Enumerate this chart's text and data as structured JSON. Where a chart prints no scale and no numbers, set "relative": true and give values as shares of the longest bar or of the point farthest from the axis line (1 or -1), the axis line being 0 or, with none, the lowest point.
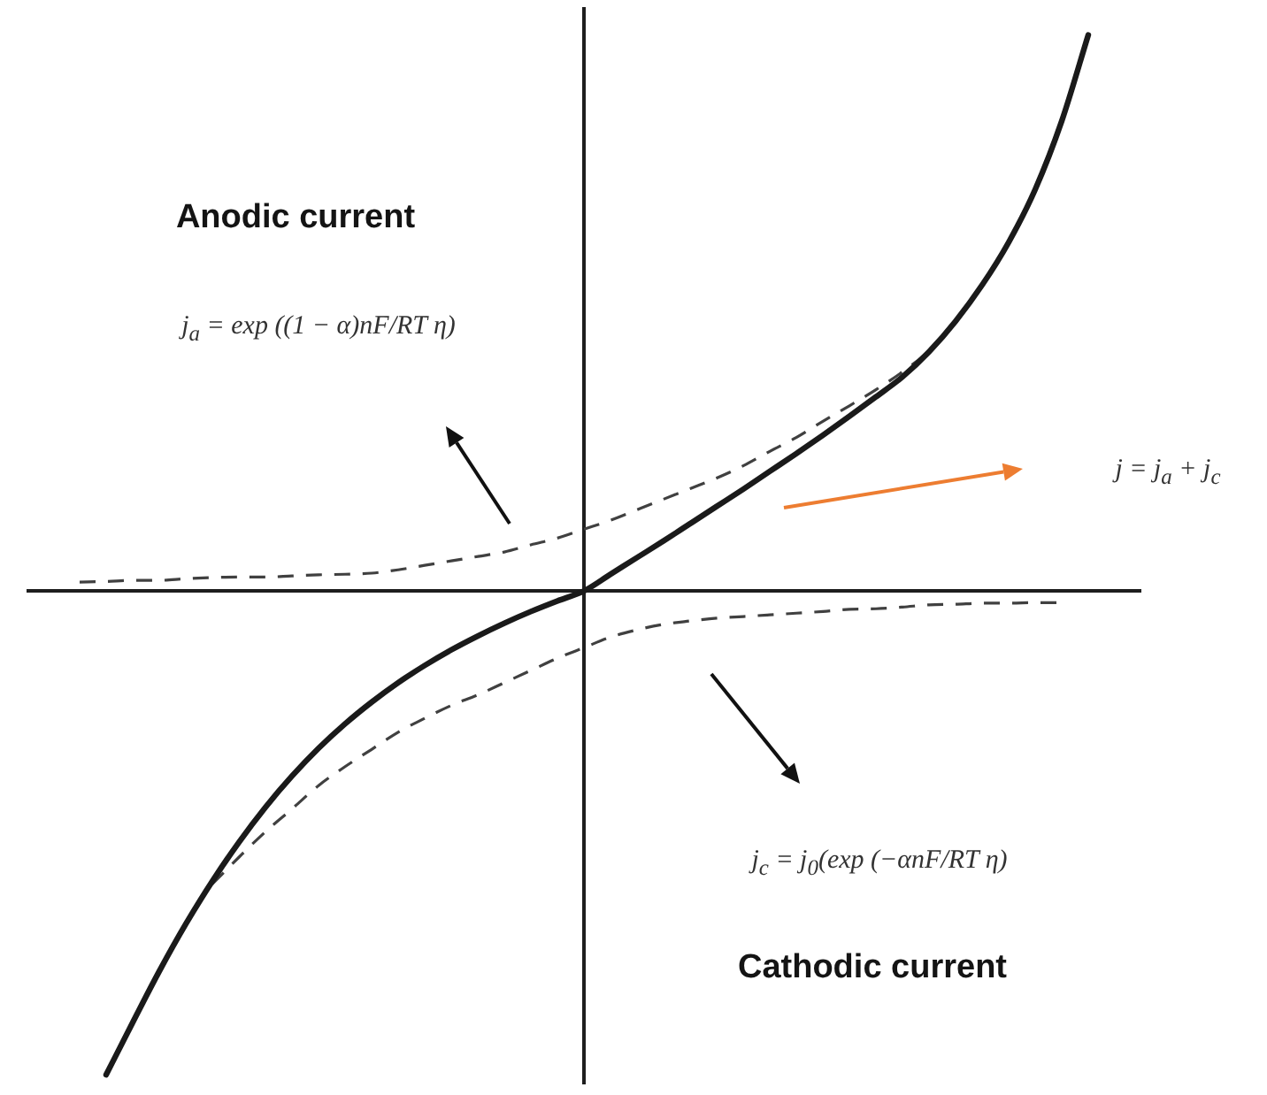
{
  "chart_data": {
    "type": "line",
    "relative": true,
    "marker": "none",
    "categories": [
      null,
      null,
      null,
      null,
      null,
      null,
      null,
      null,
      null,
      null,
      null,
      null,
      null,
      null,
      null,
      null,
      null,
      null,
      null,
      null,
      null,
      null,
      null,
      null,
      null,
      null,
      null,
      null,
      null,
      null,
      null,
      null,
      null,
      null,
      null,
      null,
      null,
      null,
      null,
      null,
      null,
      null,
      null
    ],
    "series": [
      {
        "color": "#1a1a1a",
        "line_style": "solid",
        "values": [
          null,
          null,
          null,
          -0.87,
          -0.776,
          -0.684,
          -0.599,
          -0.522,
          -0.452,
          -0.389,
          -0.333,
          -0.283,
          -0.239,
          -0.2,
          -0.165,
          -0.134,
          -0.106,
          -0.081,
          -0.058,
          -0.037,
          -0.018,
          0,
          0.03,
          0.06,
          0.09,
          0.121,
          0.152,
          0.183,
          0.215,
          0.247,
          0.28,
          0.314,
          0.349,
          0.385,
          0.43,
          0.485,
          0.55,
          0.627,
          0.722,
          0.845,
          1.0,
          null,
          null
        ]
      },
      {
        "color": "#404040",
        "line_style": "dashed",
        "values": [
          null,
          null,
          0.016,
          0.017,
          0.019,
          0.019,
          0.022,
          0.024,
          0.025,
          0.025,
          0.027,
          0.029,
          0.03,
          0.032,
          0.038,
          0.046,
          0.054,
          0.062,
          0.07,
          0.083,
          0.095,
          0.111,
          0.127,
          0.146,
          0.165,
          0.184,
          0.203,
          0.225,
          0.251,
          0.276,
          0.305,
          0.333,
          0.362,
          0.394,
          0.432,
          0.486,
          null,
          null,
          null,
          null,
          null,
          null,
          null
        ]
      },
      {
        "color": "#404040",
        "line_style": "dashed",
        "values": [
          null,
          null,
          null,
          null,
          null,
          null,
          null,
          -0.527,
          -0.479,
          -0.433,
          -0.392,
          -0.35,
          -0.316,
          -0.285,
          -0.254,
          -0.229,
          -0.206,
          -0.187,
          -0.165,
          -0.143,
          -0.121,
          -0.102,
          -0.083,
          -0.07,
          -0.06,
          -0.054,
          -0.049,
          -0.046,
          -0.043,
          -0.04,
          -0.037,
          -0.033,
          -0.032,
          -0.029,
          -0.025,
          -0.024,
          -0.022,
          -0.022,
          -0.021,
          -0.021,
          null,
          null,
          null
        ]
      }
    ],
    "annotations": [
      "Anodic current",
      "j$_{a}$ = exp ((1 − α)nF/RT η)",
      "j = j$_{a}$ + j$_{c}$",
      "j$_{c}$ = j$_{0}$(exp (−αnF/RT η)",
      "Cathodic current"
    ]
  }
}
